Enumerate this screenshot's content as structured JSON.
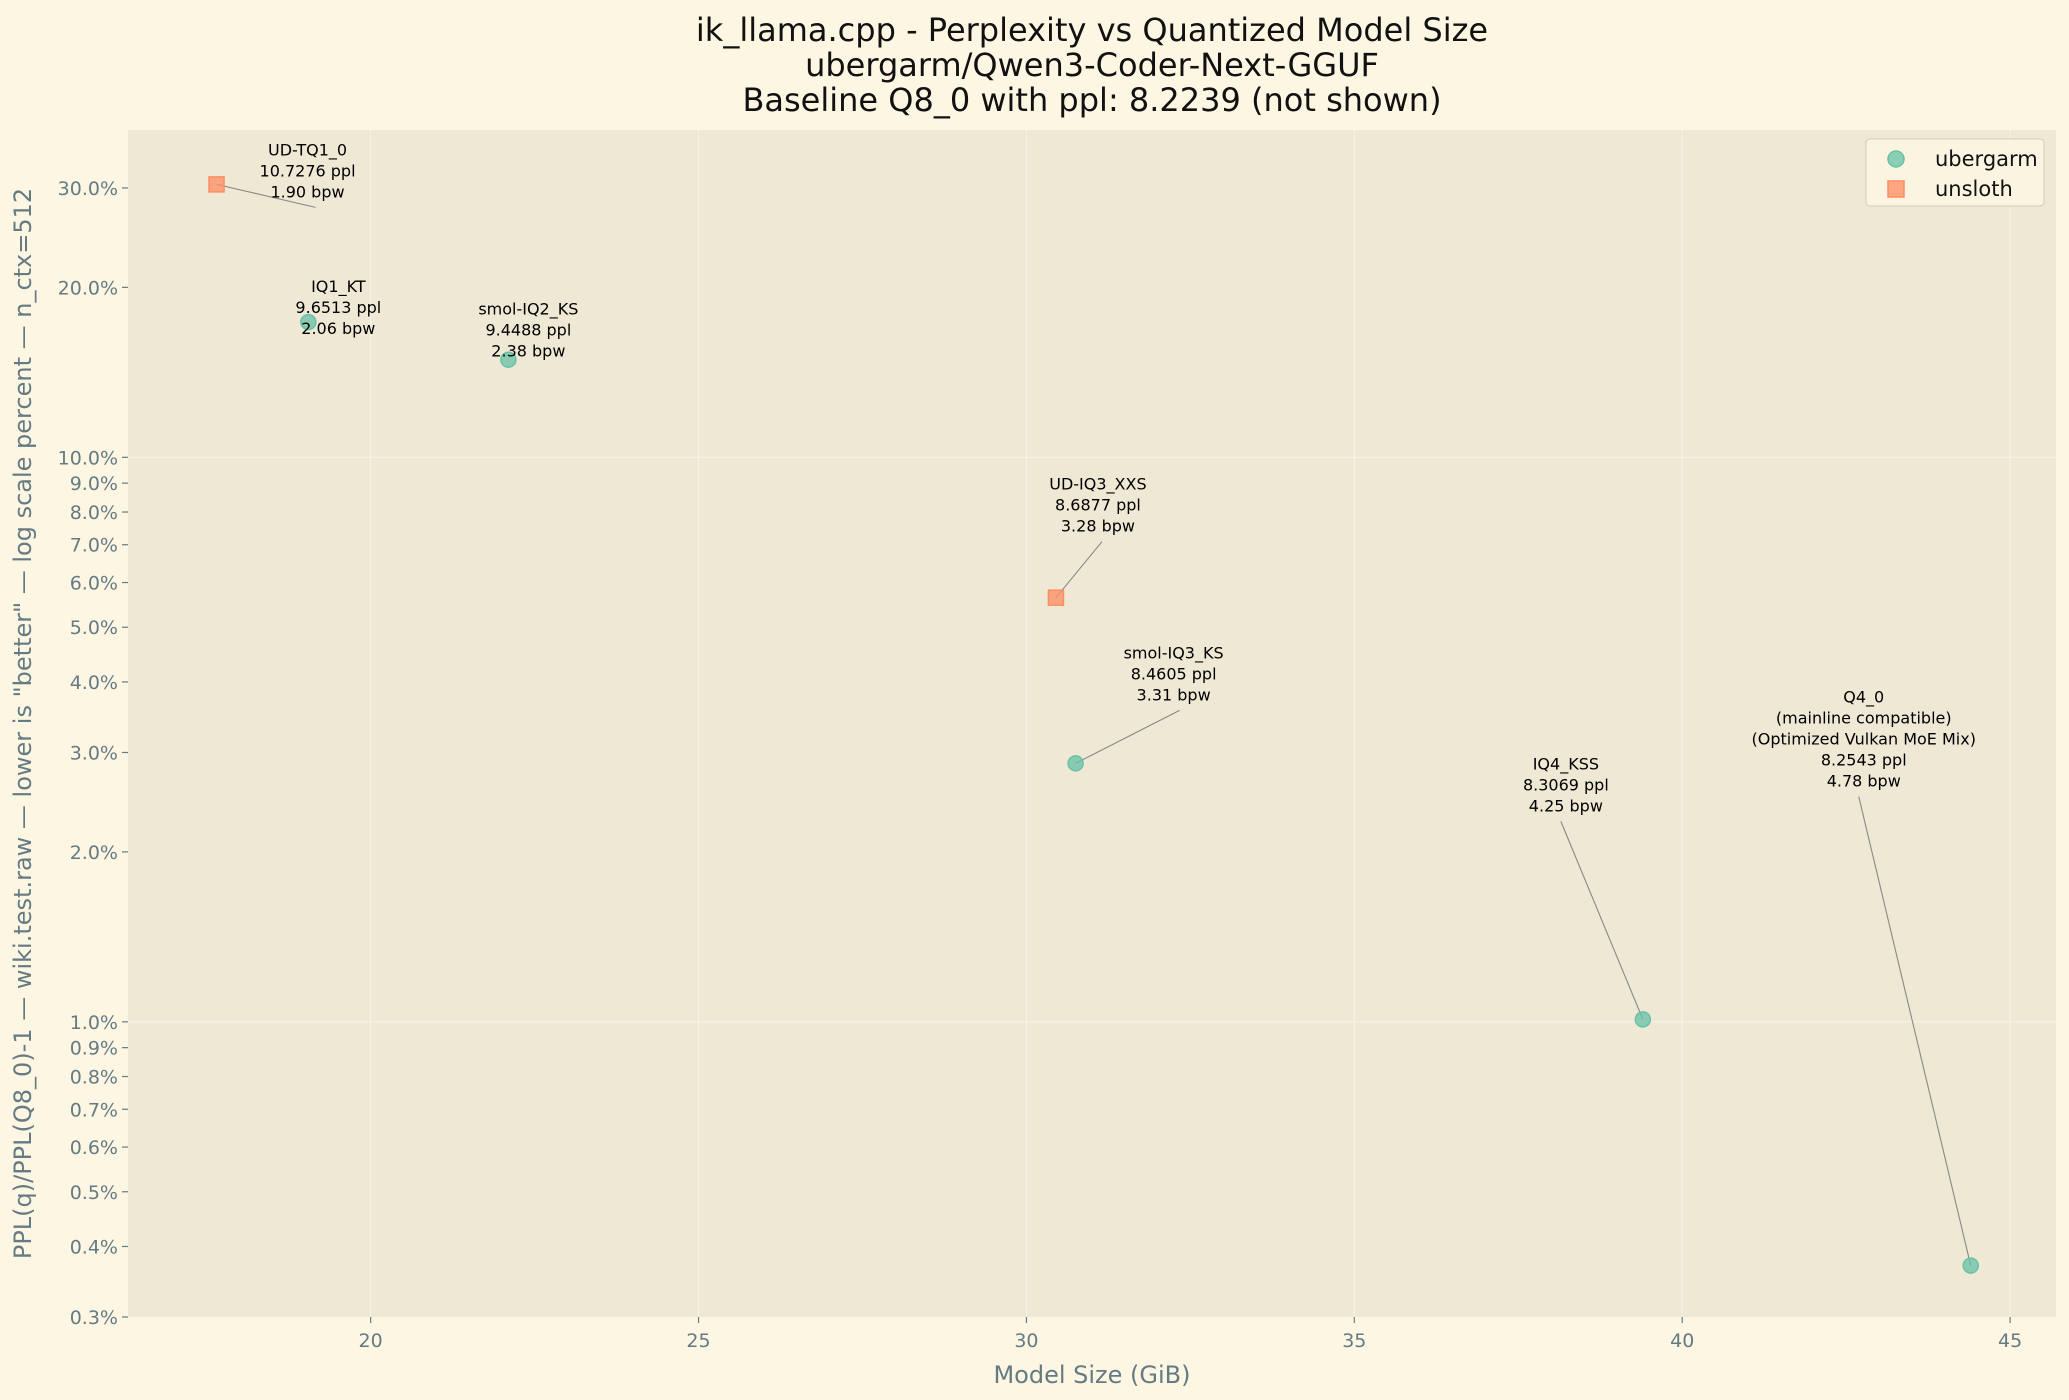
{
  "chart_data": {
    "type": "scatter",
    "title": [
      "ik_llama.cpp - Perplexity vs Quantized Model Size",
      "ubergarm/Qwen3-Coder-Next-GGUF",
      "Baseline Q8_0 with ppl: 8.2239 (not shown)"
    ],
    "xlabel": "Model Size (GiB)",
    "ylabel": "PPL(q)/PPL(Q8_0)-1 — wiki.test.raw — lower is \"better\" — log scale percent — n_ctx=512",
    "xlim": [
      16.3,
      45.7
    ],
    "ylim": [
      0.3,
      38
    ],
    "yscale": "log",
    "x_ticks": [
      20,
      25,
      30,
      35,
      40,
      45
    ],
    "x_tick_labels": [
      "20",
      "25",
      "30",
      "35",
      "40",
      "45"
    ],
    "y_ticks": [
      0.3,
      0.4,
      0.5,
      0.6,
      0.7,
      0.8,
      0.9,
      1.0,
      2.0,
      3.0,
      4.0,
      5.0,
      6.0,
      7.0,
      8.0,
      9.0,
      10.0,
      20.0,
      30.0
    ],
    "y_tick_labels": [
      "0.3%",
      "0.4%",
      "0.5%",
      "0.6%",
      "0.7%",
      "0.8%",
      "0.9%",
      "1.0%",
      "2.0%",
      "3.0%",
      "4.0%",
      "5.0%",
      "6.0%",
      "7.0%",
      "8.0%",
      "9.0%",
      "10.0%",
      "20.0%",
      "30.0%"
    ],
    "grid": true,
    "legend_position": "top-right",
    "colors": {
      "ubergarm": "#66c2a5",
      "unsloth": "#fc8d62"
    },
    "series": [
      {
        "name": "ubergarm",
        "marker": "circle",
        "points": [
          {
            "x": 19.05,
            "y": 17.36,
            "label": [
              "IQ1_KT",
              "9.6513 ppl",
              "2.06 bpw"
            ]
          },
          {
            "x": 22.1,
            "y": 14.89,
            "label": [
              "smol-IQ2_KS",
              "9.4488 ppl",
              "2.38 bpw"
            ]
          },
          {
            "x": 30.75,
            "y": 2.87,
            "label": [
              "smol-IQ3_KS",
              "8.4605 ppl",
              "3.31 bpw"
            ]
          },
          {
            "x": 39.4,
            "y": 1.01,
            "label": [
              "IQ4_KSS",
              "8.3069 ppl",
              "4.25 bpw"
            ]
          },
          {
            "x": 44.4,
            "y": 0.37,
            "label": [
              "Q4_0",
              "(mainline compatible)",
              "(Optimized Vulkan MoE Mix)",
              "8.2543 ppl",
              "4.78 bpw"
            ]
          }
        ]
      },
      {
        "name": "unsloth",
        "marker": "square",
        "points": [
          {
            "x": 17.65,
            "y": 30.44,
            "label": [
              "UD-TQ1_0",
              "10.7276 ppl",
              "1.90 bpw"
            ]
          },
          {
            "x": 30.45,
            "y": 5.64,
            "label": [
              "UD-IQ3_XXS",
              "8.6877 ppl",
              "3.28 bpw"
            ]
          }
        ]
      }
    ]
  }
}
